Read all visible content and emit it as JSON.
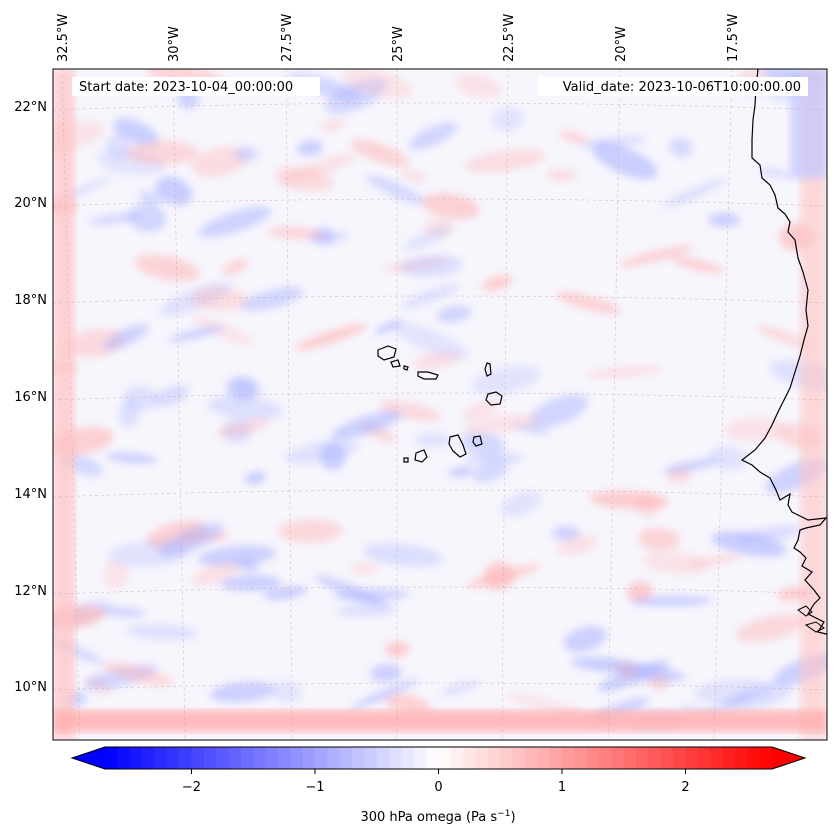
{
  "header": {
    "start_label": "Start date: 2023-10-04_00:00:00",
    "valid_label": "Valid_date: 2023-10-06T10:00:00.00"
  },
  "axes": {
    "lon_labels": [
      "32.5°W",
      "30°W",
      "27.5°W",
      "25°W",
      "22.5°W",
      "20°W",
      "17.5°W"
    ],
    "lat_labels": [
      "22°N",
      "20°N",
      "18°N",
      "16°N",
      "14°N",
      "12°N",
      "10°N"
    ]
  },
  "colorbar": {
    "label": "300 hPa omega (Pa s",
    "label_sup": "−1",
    "label_close": ")",
    "ticks": [
      -2,
      -1,
      0,
      1,
      2
    ],
    "tick_labels": [
      "−2",
      "−1",
      "0",
      "1",
      "2"
    ],
    "range": [
      -2.7,
      2.7
    ],
    "low_color": "#0000ff",
    "mid_color": "#ffffff",
    "high_color": "#ff0000"
  },
  "colors": {
    "coast": "#000000",
    "grid": "#c8a8a8",
    "field_blue": "#a8b0ff",
    "field_red": "#ffb0b0"
  }
}
